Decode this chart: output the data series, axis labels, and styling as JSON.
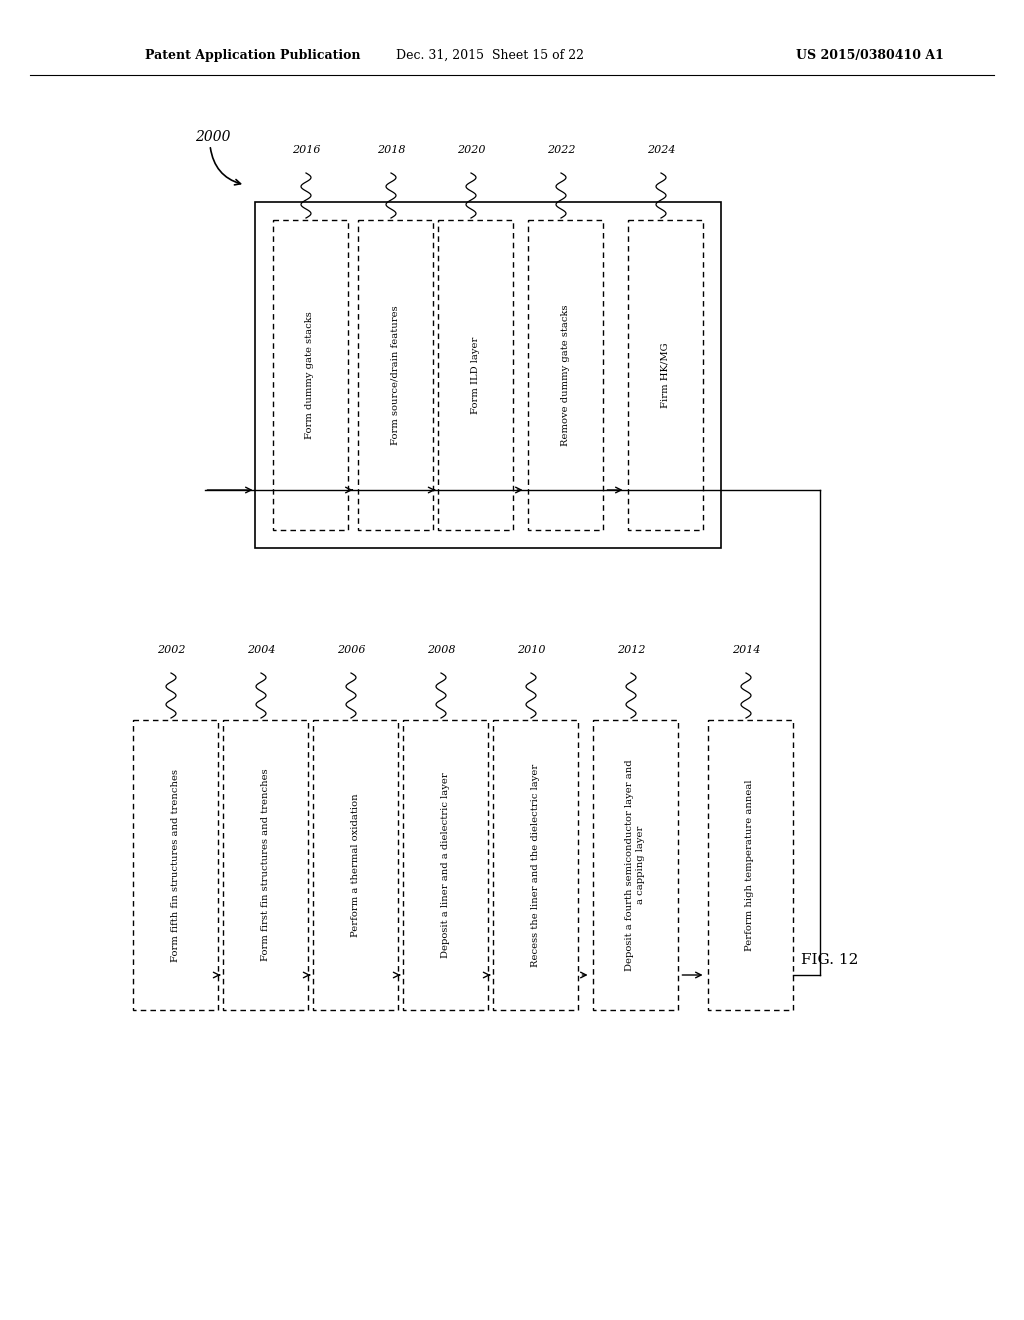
{
  "header_left": "Patent Application Publication",
  "header_center": "Dec. 31, 2015  Sheet 15 of 22",
  "header_right": "US 2015/0380410 A1",
  "figure_label": "FIG. 12",
  "main_label": "2000",
  "bottom_row": {
    "steps": [
      {
        "id": "2002",
        "text": "Form fifth fin structures and trenches"
      },
      {
        "id": "2004",
        "text": "Form first fin structures and trenches"
      },
      {
        "id": "2006",
        "text": "Perform a thermal oxidation"
      },
      {
        "id": "2008",
        "text": "Deposit a liner and a dielectric layer"
      },
      {
        "id": "2010",
        "text": "Recess the liner and the dielectric layer"
      },
      {
        "id": "2012",
        "text": "Deposit a fourth semiconductor layer and\na capping layer"
      },
      {
        "id": "2014",
        "text": "Perform high temperature anneal"
      }
    ]
  },
  "top_row": {
    "steps": [
      {
        "id": "2016",
        "text": "Form dummy gate stacks"
      },
      {
        "id": "2018",
        "text": "Form source/drain features"
      },
      {
        "id": "2020",
        "text": "Form ILD layer"
      },
      {
        "id": "2022",
        "text": "Remove dummy gate stacks"
      },
      {
        "id": "2024",
        "text": "Firm HK/MG"
      }
    ]
  },
  "bg_color": "#ffffff",
  "box_edge_color": "#000000",
  "text_color": "#000000"
}
